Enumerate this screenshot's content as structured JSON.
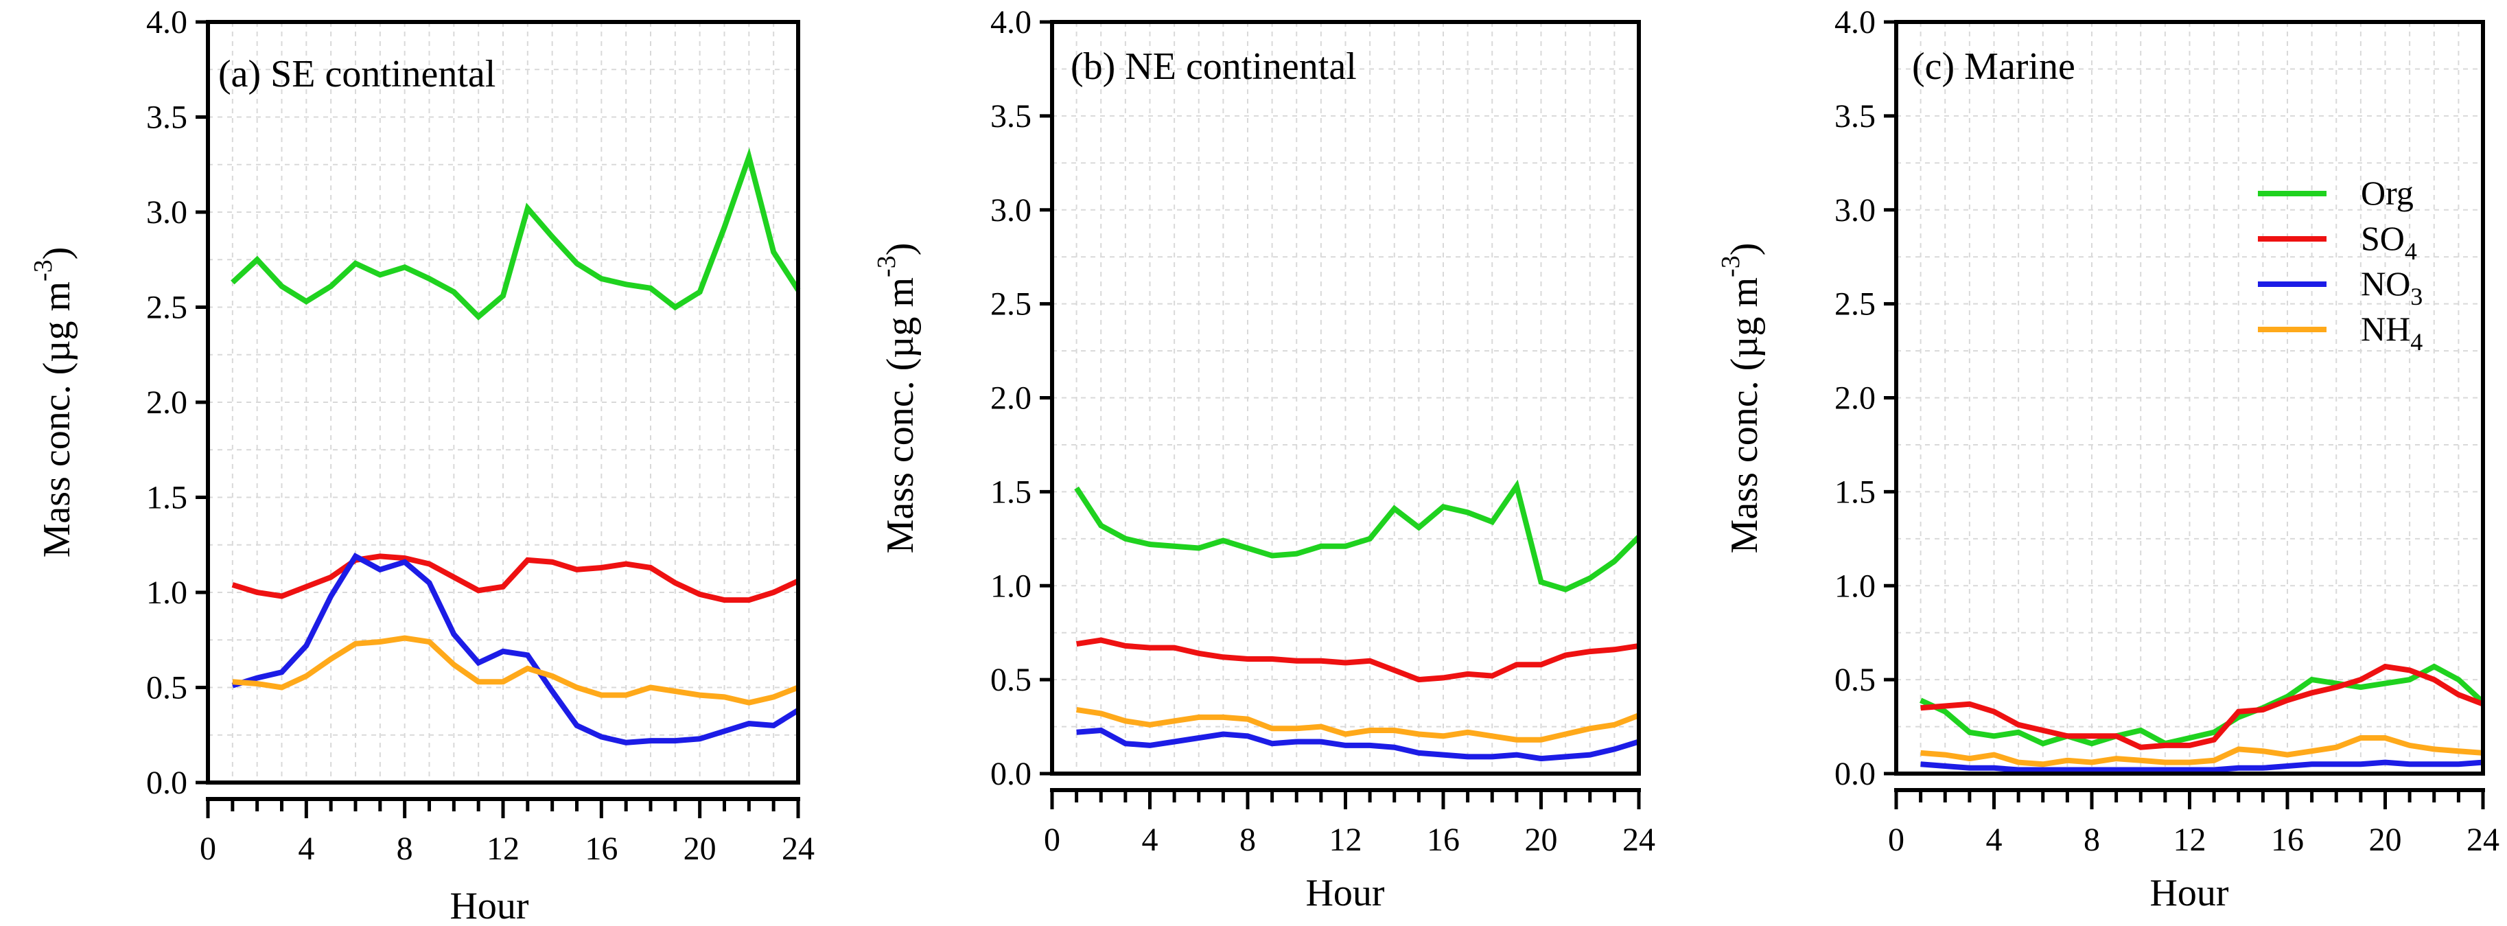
{
  "chart_data": [
    {
      "type": "line",
      "title": "(a) SE continental",
      "xlabel": "Hour",
      "ylabel": "Mass conc. (µg m-3)",
      "ylabel_parts": [
        "Mass conc. (µg m",
        "-3",
        ")"
      ],
      "xlim": [
        0,
        24
      ],
      "ylim": [
        0,
        4
      ],
      "grid": true,
      "x_ticks": [
        0,
        4,
        8,
        12,
        16,
        20,
        24
      ],
      "x_tick_labels": [
        "0",
        "4",
        "8",
        "12",
        "16",
        "20",
        "24"
      ],
      "y_ticks": [
        0,
        0.5,
        1,
        1.5,
        2,
        2.5,
        3,
        3.5,
        4
      ],
      "y_tick_labels": [
        "0.0",
        "0.5",
        "1.0",
        "1.5",
        "2.0",
        "2.5",
        "3.0",
        "3.5",
        "4.0"
      ],
      "x": [
        1,
        2,
        3,
        4,
        5,
        6,
        7,
        8,
        9,
        10,
        11,
        12,
        13,
        14,
        15,
        16,
        17,
        18,
        19,
        20,
        21,
        22,
        23,
        24
      ],
      "series": [
        {
          "name": "Org",
          "color": "#1fd21f",
          "values": [
            2.63,
            2.75,
            2.61,
            2.53,
            2.61,
            2.73,
            2.67,
            2.71,
            2.65,
            2.58,
            2.45,
            2.56,
            3.02,
            2.87,
            2.73,
            2.65,
            2.62,
            2.6,
            2.5,
            2.58,
            2.92,
            3.29,
            2.79,
            2.59
          ]
        },
        {
          "name": "SO4",
          "color": "#ee1111",
          "values": [
            1.04,
            1.0,
            0.98,
            1.03,
            1.08,
            1.17,
            1.19,
            1.18,
            1.15,
            1.08,
            1.01,
            1.03,
            1.17,
            1.16,
            1.12,
            1.13,
            1.15,
            1.13,
            1.05,
            0.99,
            0.96,
            0.96,
            1.0,
            1.06
          ]
        },
        {
          "name": "NO3",
          "color": "#1c1ce6",
          "values": [
            0.51,
            0.55,
            0.58,
            0.72,
            0.98,
            1.19,
            1.12,
            1.16,
            1.05,
            0.78,
            0.63,
            0.69,
            0.67,
            0.48,
            0.3,
            0.24,
            0.21,
            0.22,
            0.22,
            0.23,
            0.27,
            0.31,
            0.3,
            0.38
          ]
        },
        {
          "name": "NH4",
          "color": "#ffa91a",
          "values": [
            0.53,
            0.52,
            0.5,
            0.56,
            0.65,
            0.73,
            0.74,
            0.76,
            0.74,
            0.62,
            0.53,
            0.53,
            0.6,
            0.56,
            0.5,
            0.46,
            0.46,
            0.5,
            0.48,
            0.46,
            0.45,
            0.42,
            0.45,
            0.5
          ]
        }
      ]
    },
    {
      "type": "line",
      "title": "(b) NE continental",
      "xlabel": "Hour",
      "ylabel": "Mass conc. (µg m-3)",
      "ylabel_parts": [
        "Mass conc. (µg m",
        "-3",
        ")"
      ],
      "xlim": [
        0,
        24
      ],
      "ylim": [
        0,
        4
      ],
      "grid": true,
      "x_ticks": [
        0,
        4,
        8,
        12,
        16,
        20,
        24
      ],
      "x_tick_labels": [
        "0",
        "4",
        "8",
        "12",
        "16",
        "20",
        "24"
      ],
      "y_ticks": [
        0,
        0.5,
        1,
        1.5,
        2,
        2.5,
        3,
        3.5,
        4
      ],
      "y_tick_labels": [
        "0.0",
        "0.5",
        "1.0",
        "1.5",
        "2.0",
        "2.5",
        "3.0",
        "3.5",
        "4.0"
      ],
      "x": [
        1,
        2,
        3,
        4,
        5,
        6,
        7,
        8,
        9,
        10,
        11,
        12,
        13,
        14,
        15,
        16,
        17,
        18,
        19,
        20,
        21,
        22,
        23,
        24
      ],
      "series": [
        {
          "name": "Org",
          "color": "#1fd21f",
          "values": [
            1.52,
            1.32,
            1.25,
            1.22,
            1.21,
            1.2,
            1.24,
            1.2,
            1.16,
            1.17,
            1.21,
            1.21,
            1.25,
            1.41,
            1.31,
            1.42,
            1.39,
            1.34,
            1.53,
            1.02,
            0.98,
            1.04,
            1.13,
            1.26
          ]
        },
        {
          "name": "SO4",
          "color": "#ee1111",
          "values": [
            0.69,
            0.71,
            0.68,
            0.67,
            0.67,
            0.64,
            0.62,
            0.61,
            0.61,
            0.6,
            0.6,
            0.59,
            0.6,
            0.55,
            0.5,
            0.51,
            0.53,
            0.52,
            0.58,
            0.58,
            0.63,
            0.65,
            0.66,
            0.68
          ]
        },
        {
          "name": "NO3",
          "color": "#1c1ce6",
          "values": [
            0.22,
            0.23,
            0.16,
            0.15,
            0.17,
            0.19,
            0.21,
            0.2,
            0.16,
            0.17,
            0.17,
            0.15,
            0.15,
            0.14,
            0.11,
            0.1,
            0.09,
            0.09,
            0.1,
            0.08,
            0.09,
            0.1,
            0.13,
            0.17
          ]
        },
        {
          "name": "NH4",
          "color": "#ffa91a",
          "values": [
            0.34,
            0.32,
            0.28,
            0.26,
            0.28,
            0.3,
            0.3,
            0.29,
            0.24,
            0.24,
            0.25,
            0.21,
            0.23,
            0.23,
            0.21,
            0.2,
            0.22,
            0.2,
            0.18,
            0.18,
            0.21,
            0.24,
            0.26,
            0.31
          ]
        }
      ]
    },
    {
      "type": "line",
      "title": "(c) Marine",
      "xlabel": "Hour",
      "ylabel": "Mass conc. (µg m-3)",
      "ylabel_parts": [
        "Mass conc. (µg m",
        "-3",
        ")"
      ],
      "xlim": [
        0,
        24
      ],
      "ylim": [
        0,
        4
      ],
      "grid": true,
      "legend": "top-right",
      "x_ticks": [
        0,
        4,
        8,
        12,
        16,
        20,
        24
      ],
      "x_tick_labels": [
        "0",
        "4",
        "8",
        "12",
        "16",
        "20",
        "24"
      ],
      "y_ticks": [
        0,
        0.5,
        1,
        1.5,
        2,
        2.5,
        3,
        3.5,
        4
      ],
      "y_tick_labels": [
        "0.0",
        "0.5",
        "1.0",
        "1.5",
        "2.0",
        "2.5",
        "3.0",
        "3.5",
        "4.0"
      ],
      "x": [
        1,
        2,
        3,
        4,
        5,
        6,
        7,
        8,
        9,
        10,
        11,
        12,
        13,
        14,
        15,
        16,
        17,
        18,
        19,
        20,
        21,
        22,
        23,
        24
      ],
      "series": [
        {
          "name": "Org",
          "color": "#1fd21f",
          "values": [
            0.39,
            0.33,
            0.22,
            0.2,
            0.22,
            0.16,
            0.2,
            0.16,
            0.2,
            0.23,
            0.16,
            0.19,
            0.22,
            0.3,
            0.35,
            0.41,
            0.5,
            0.48,
            0.46,
            0.48,
            0.5,
            0.57,
            0.5,
            0.38
          ]
        },
        {
          "name": "SO4",
          "color": "#ee1111",
          "values": [
            0.35,
            0.36,
            0.37,
            0.33,
            0.26,
            0.23,
            0.2,
            0.2,
            0.2,
            0.14,
            0.15,
            0.15,
            0.18,
            0.33,
            0.34,
            0.39,
            0.43,
            0.46,
            0.5,
            0.57,
            0.55,
            0.5,
            0.42,
            0.37
          ]
        },
        {
          "name": "NO3",
          "color": "#1c1ce6",
          "values": [
            0.05,
            0.04,
            0.03,
            0.03,
            0.02,
            0.02,
            0.02,
            0.02,
            0.02,
            0.02,
            0.02,
            0.02,
            0.02,
            0.03,
            0.03,
            0.04,
            0.05,
            0.05,
            0.05,
            0.06,
            0.05,
            0.05,
            0.05,
            0.06
          ]
        },
        {
          "name": "NH4",
          "color": "#ffa91a",
          "values": [
            0.11,
            0.1,
            0.08,
            0.1,
            0.06,
            0.05,
            0.07,
            0.06,
            0.08,
            0.07,
            0.06,
            0.06,
            0.07,
            0.13,
            0.12,
            0.1,
            0.12,
            0.14,
            0.19,
            0.19,
            0.15,
            0.13,
            0.12,
            0.11
          ]
        }
      ]
    }
  ],
  "legend": [
    {
      "label": "Org",
      "sub": "",
      "color": "#1fd21f"
    },
    {
      "label": "SO",
      "sub": "4",
      "color": "#ee1111"
    },
    {
      "label": "NO",
      "sub": "3",
      "color": "#1c1ce6"
    },
    {
      "label": "NH",
      "sub": "4",
      "color": "#ffa91a"
    }
  ]
}
